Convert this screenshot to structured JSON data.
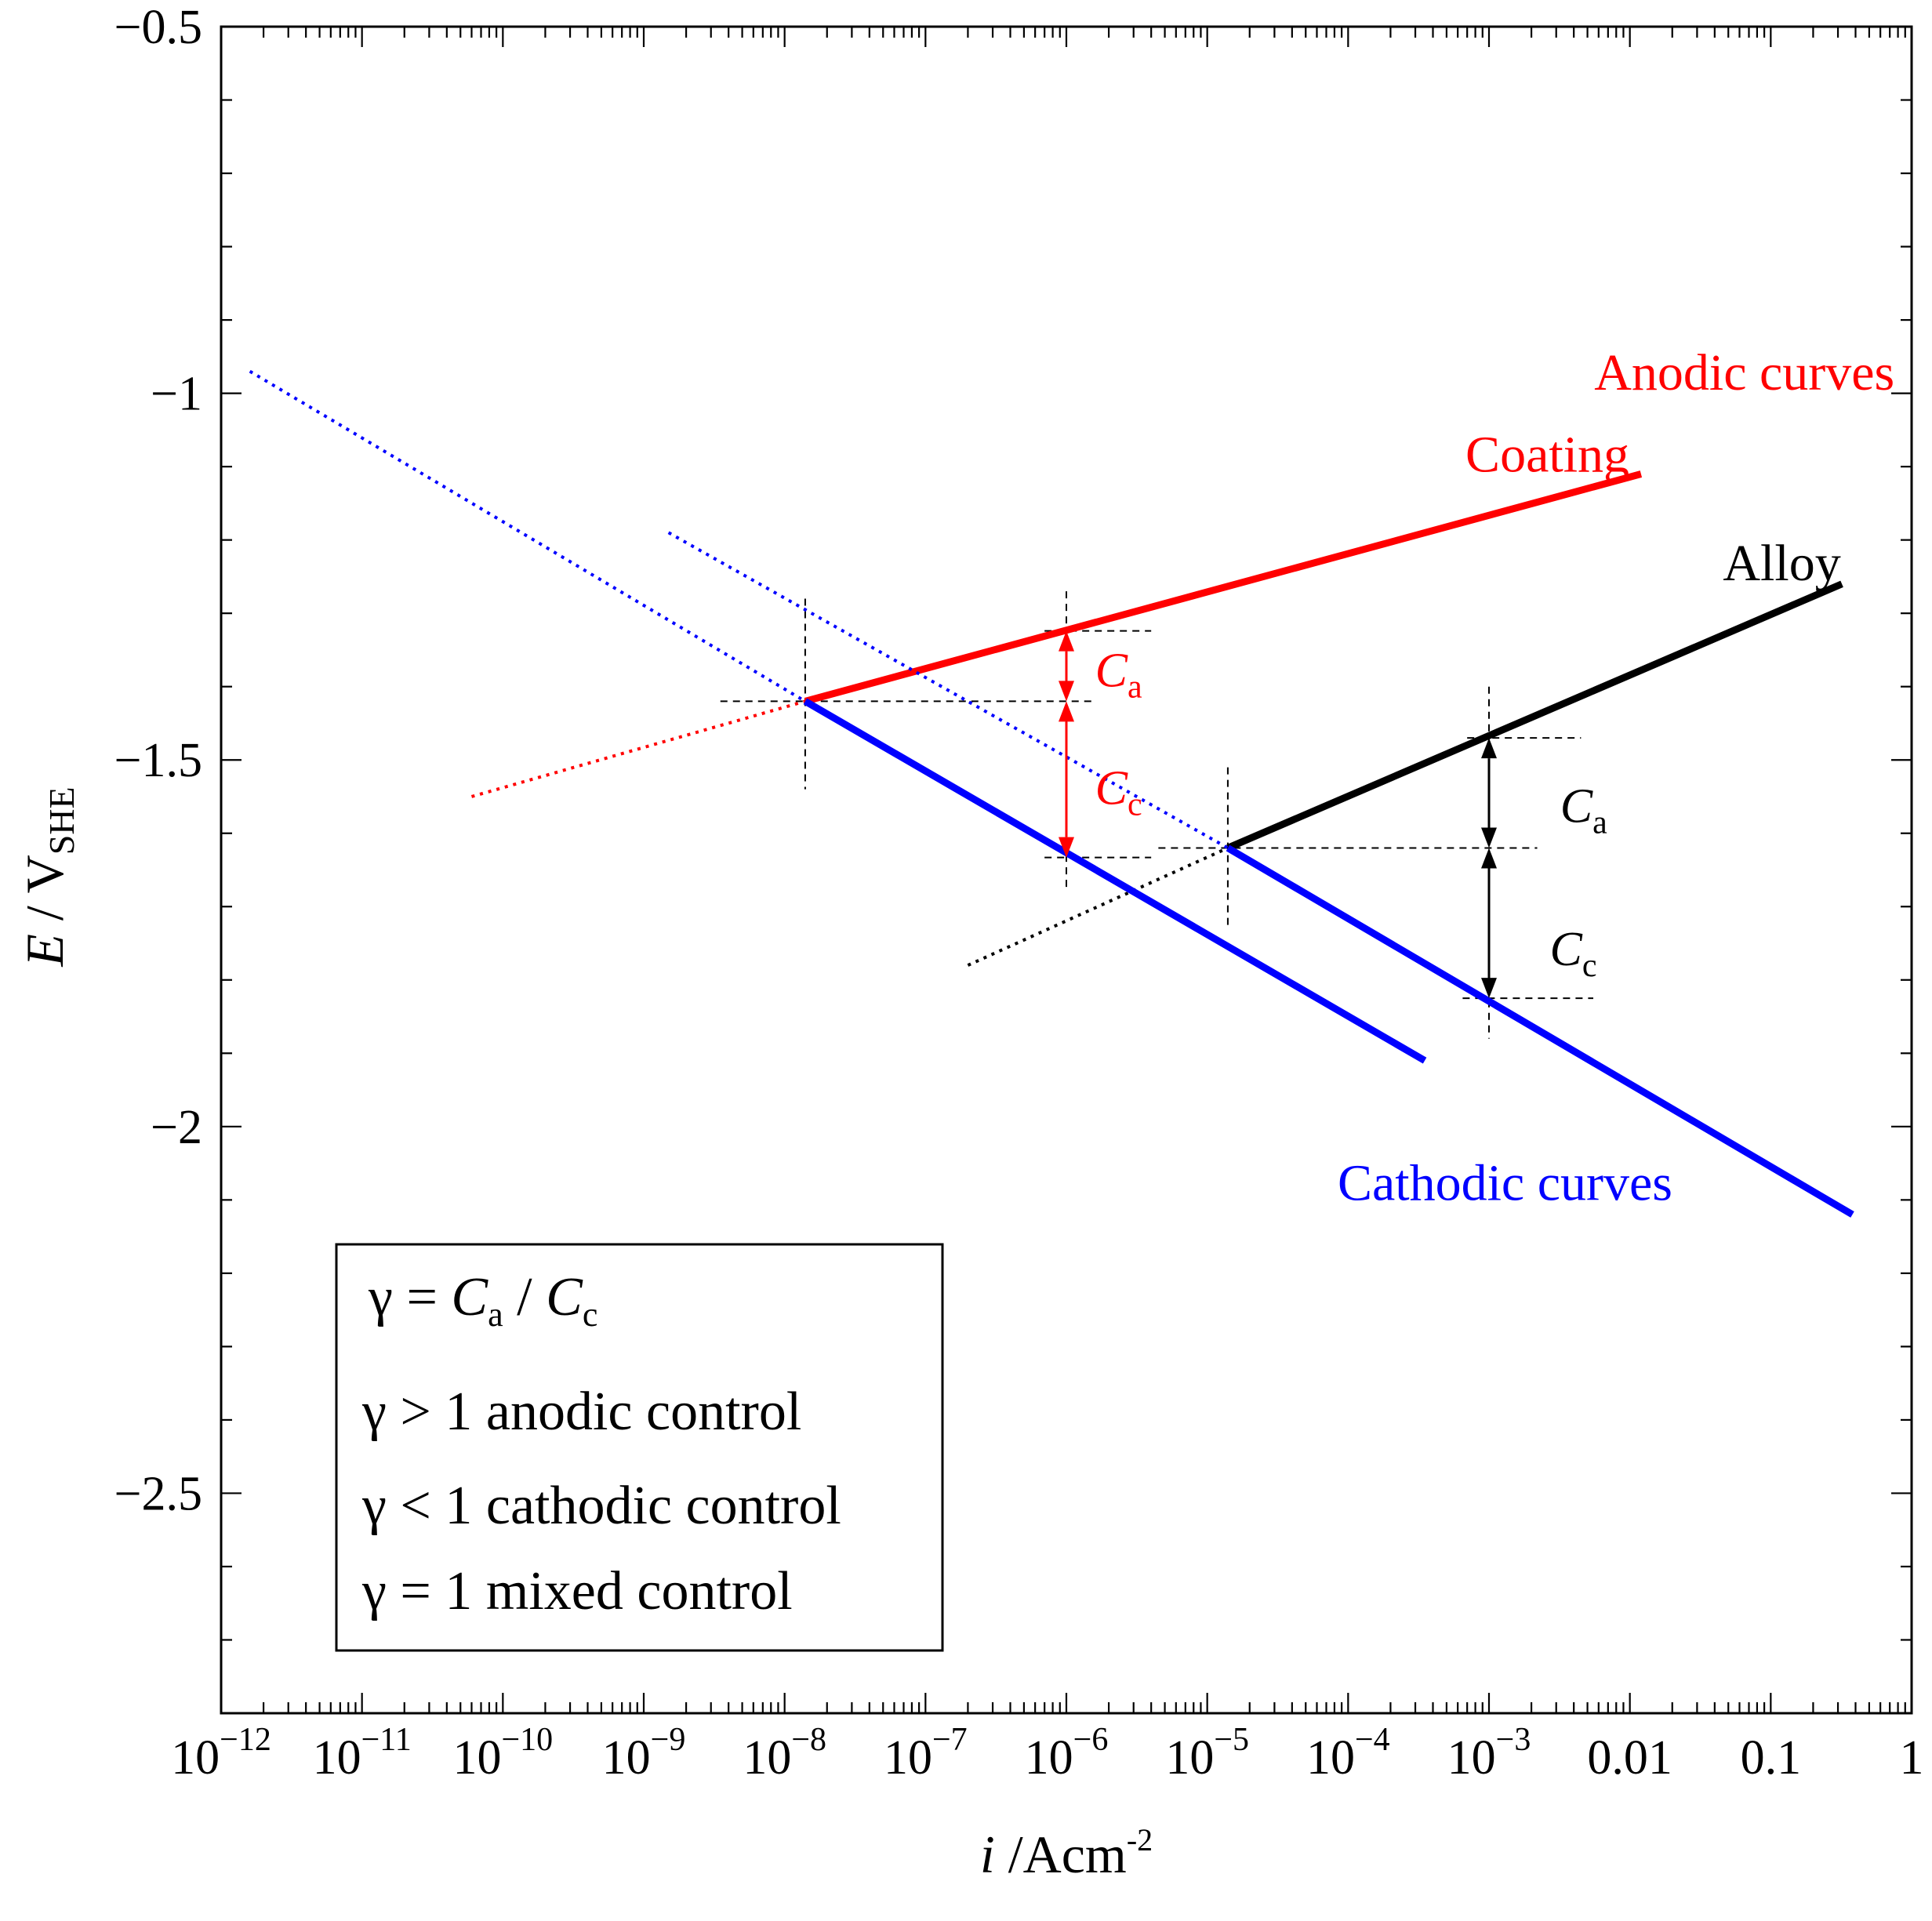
{
  "chart_data": {
    "type": "line",
    "title": "",
    "xlabel": {
      "italic": "i",
      "rest": " /Acm",
      "sup": "-2"
    },
    "ylabel": {
      "italic": "E",
      "rest": " / V",
      "sub": "SHE"
    },
    "xscale": "log",
    "xlim": [
      1e-12,
      1
    ],
    "ylim": [
      -2.8,
      -0.5
    ],
    "x_tick_values": [
      1e-12,
      1e-11,
      1e-10,
      1e-09,
      1e-08,
      1e-07,
      1e-06,
      1e-05,
      0.0001,
      0.001,
      0.01,
      0.1,
      1
    ],
    "x_tick_labels": [
      {
        "base": "10",
        "exp": "−12"
      },
      {
        "base": "10",
        "exp": "−11"
      },
      {
        "base": "10",
        "exp": "−10"
      },
      {
        "base": "10",
        "exp": "−9"
      },
      {
        "base": "10",
        "exp": "−8"
      },
      {
        "base": "10",
        "exp": "−7"
      },
      {
        "base": "10",
        "exp": "−6"
      },
      {
        "base": "10",
        "exp": "−5"
      },
      {
        "base": "10",
        "exp": "−4"
      },
      {
        "base": "10",
        "exp": "−3"
      },
      {
        "base": "0.01",
        "exp": ""
      },
      {
        "base": "0.1",
        "exp": ""
      },
      {
        "base": "1",
        "exp": ""
      }
    ],
    "y_tick_values": [
      -0.5,
      -1,
      -1.5,
      -2,
      -2.5
    ],
    "y_tick_labels": [
      "−0.5",
      "−1",
      "−1.5",
      "−2",
      "−2.5"
    ],
    "y_minor_step": 0.1,
    "series": [
      {
        "name": "Coating anodic",
        "color": "#ff0000",
        "style": "solid",
        "width": 9,
        "points": [
          [
            1.4e-08,
            -1.42
          ],
          [
            0.012,
            -1.11
          ]
        ]
      },
      {
        "name": "Coating anodic extrapolation",
        "color": "#ff0000",
        "style": "dotted",
        "width": 4,
        "points": [
          [
            6e-11,
            -1.55
          ],
          [
            1.4e-08,
            -1.42
          ]
        ]
      },
      {
        "name": "Alloy anodic",
        "color": "#000000",
        "style": "solid",
        "width": 9,
        "points": [
          [
            1.4e-05,
            -1.62
          ],
          [
            0.32,
            -1.26
          ]
        ]
      },
      {
        "name": "Alloy anodic extrapolation",
        "color": "#000000",
        "style": "dotted",
        "width": 4,
        "points": [
          [
            2e-07,
            -1.78
          ],
          [
            1.4e-05,
            -1.62
          ]
        ]
      },
      {
        "name": "Cathodic (coating)",
        "color": "#0000ff",
        "style": "solid",
        "width": 9,
        "points": [
          [
            1.4e-08,
            -1.42
          ],
          [
            0.00035,
            -1.91
          ]
        ]
      },
      {
        "name": "Cathodic (coating) extrapolation",
        "color": "#0000ff",
        "style": "dotted",
        "width": 4,
        "points": [
          [
            1.6e-12,
            -0.97
          ],
          [
            1.4e-08,
            -1.42
          ]
        ]
      },
      {
        "name": "Cathodic (alloy)",
        "color": "#0000ff",
        "style": "solid",
        "width": 9,
        "points": [
          [
            1.4e-05,
            -1.62
          ],
          [
            0.38,
            -2.12
          ]
        ]
      },
      {
        "name": "Cathodic (alloy) extrapolation",
        "color": "#0000ff",
        "style": "dotted",
        "width": 4,
        "points": [
          [
            1.5e-09,
            -1.19
          ],
          [
            1.4e-05,
            -1.62
          ]
        ]
      }
    ],
    "guides": [
      {
        "h": true,
        "from": 3.5e-09,
        "to": 1.6e-06,
        "value": -1.42
      },
      {
        "h": false,
        "at": 1.4e-08,
        "from": -1.28,
        "to": -1.54
      },
      {
        "h": true,
        "from": 7e-07,
        "to": 4e-06,
        "value": -1.324
      },
      {
        "h": true,
        "from": 7e-07,
        "to": 4e-06,
        "value": -1.633
      },
      {
        "h": false,
        "at": 1e-06,
        "from": -1.27,
        "to": -1.68
      },
      {
        "h": true,
        "from": 4.5e-06,
        "to": 0.0022,
        "value": -1.62
      },
      {
        "h": false,
        "at": 1.4e-05,
        "from": -1.51,
        "to": -1.73
      },
      {
        "h": true,
        "from": 0.0007,
        "to": 0.0045,
        "value": -1.47
      },
      {
        "h": true,
        "from": 0.00065,
        "to": 0.0055,
        "value": -1.825
      },
      {
        "h": false,
        "at": 0.001,
        "from": -1.4,
        "to": -1.88
      }
    ],
    "arrows": [
      {
        "color": "#ff0000",
        "at": 1e-06,
        "from": -1.324,
        "to": -1.42
      },
      {
        "color": "#ff0000",
        "at": 1e-06,
        "from": -1.42,
        "to": -1.633
      },
      {
        "color": "#000000",
        "at": 0.001,
        "from": -1.47,
        "to": -1.62
      },
      {
        "color": "#000000",
        "at": 0.001,
        "from": -1.62,
        "to": -1.825
      }
    ],
    "annotations": [
      {
        "id": "anodic",
        "text": "Anodic curves",
        "color": "#ff0000",
        "x": 0.065,
        "y": -0.995,
        "anchor": "middle"
      },
      {
        "id": "coating",
        "text": "Coating",
        "color": "#ff0000",
        "x": 0.0026,
        "y": -1.107,
        "anchor": "middle"
      },
      {
        "id": "alloy",
        "text": "Alloy",
        "color": "#000000",
        "x": 0.12,
        "y": -1.255,
        "anchor": "middle"
      },
      {
        "id": "cathodic",
        "text": "Cathodic curves",
        "color": "#0000ff",
        "x": 0.0013,
        "y": -2.1,
        "anchor": "middle"
      }
    ],
    "c_labels": [
      {
        "letter": "C",
        "sub": "a",
        "color": "#ff0000",
        "x": 1.6e-06,
        "y": -1.4
      },
      {
        "letter": "C",
        "sub": "c",
        "color": "#ff0000",
        "x": 1.6e-06,
        "y": -1.56
      },
      {
        "letter": "C",
        "sub": "a",
        "color": "#000000",
        "x": 0.0032,
        "y": -1.585
      },
      {
        "letter": "C",
        "sub": "c",
        "color": "#000000",
        "x": 0.0027,
        "y": -1.78
      }
    ],
    "legend_box": {
      "formula": {
        "gamma": "γ",
        "eq": " = ",
        "ca": "C",
        "ca_sub": "a",
        "slash": " / ",
        "cc": "C",
        "cc_sub": "c"
      },
      "lines": [
        "γ > 1 anodic control",
        "γ < 1 cathodic control",
        "γ = 1 mixed control"
      ]
    }
  }
}
